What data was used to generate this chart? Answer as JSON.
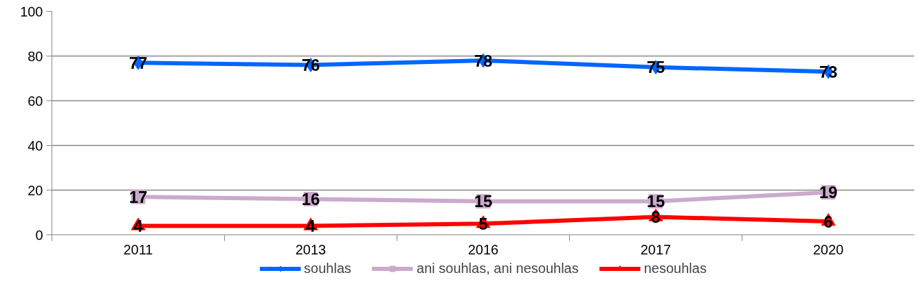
{
  "chart_data": {
    "type": "line",
    "categories": [
      "2011",
      "2013",
      "2016",
      "2017",
      "2020"
    ],
    "series": [
      {
        "name": "souhlas",
        "color": "#0066ff",
        "marker": "diamond",
        "values": [
          77,
          76,
          78,
          75,
          73
        ]
      },
      {
        "name": "ani souhlas, ani nesouhlas",
        "color": "#ccaacc",
        "marker": "square",
        "values": [
          17,
          16,
          15,
          15,
          19
        ]
      },
      {
        "name": "nesouhlas",
        "color": "#ff0000",
        "marker": "triangle",
        "values": [
          4,
          4,
          5,
          8,
          6
        ]
      }
    ],
    "ylim": [
      0,
      100
    ],
    "yticks": [
      0,
      20,
      40,
      60,
      80,
      100
    ],
    "grid": "y",
    "legend": "bottom",
    "data_labels": true,
    "line_style": "solid"
  }
}
